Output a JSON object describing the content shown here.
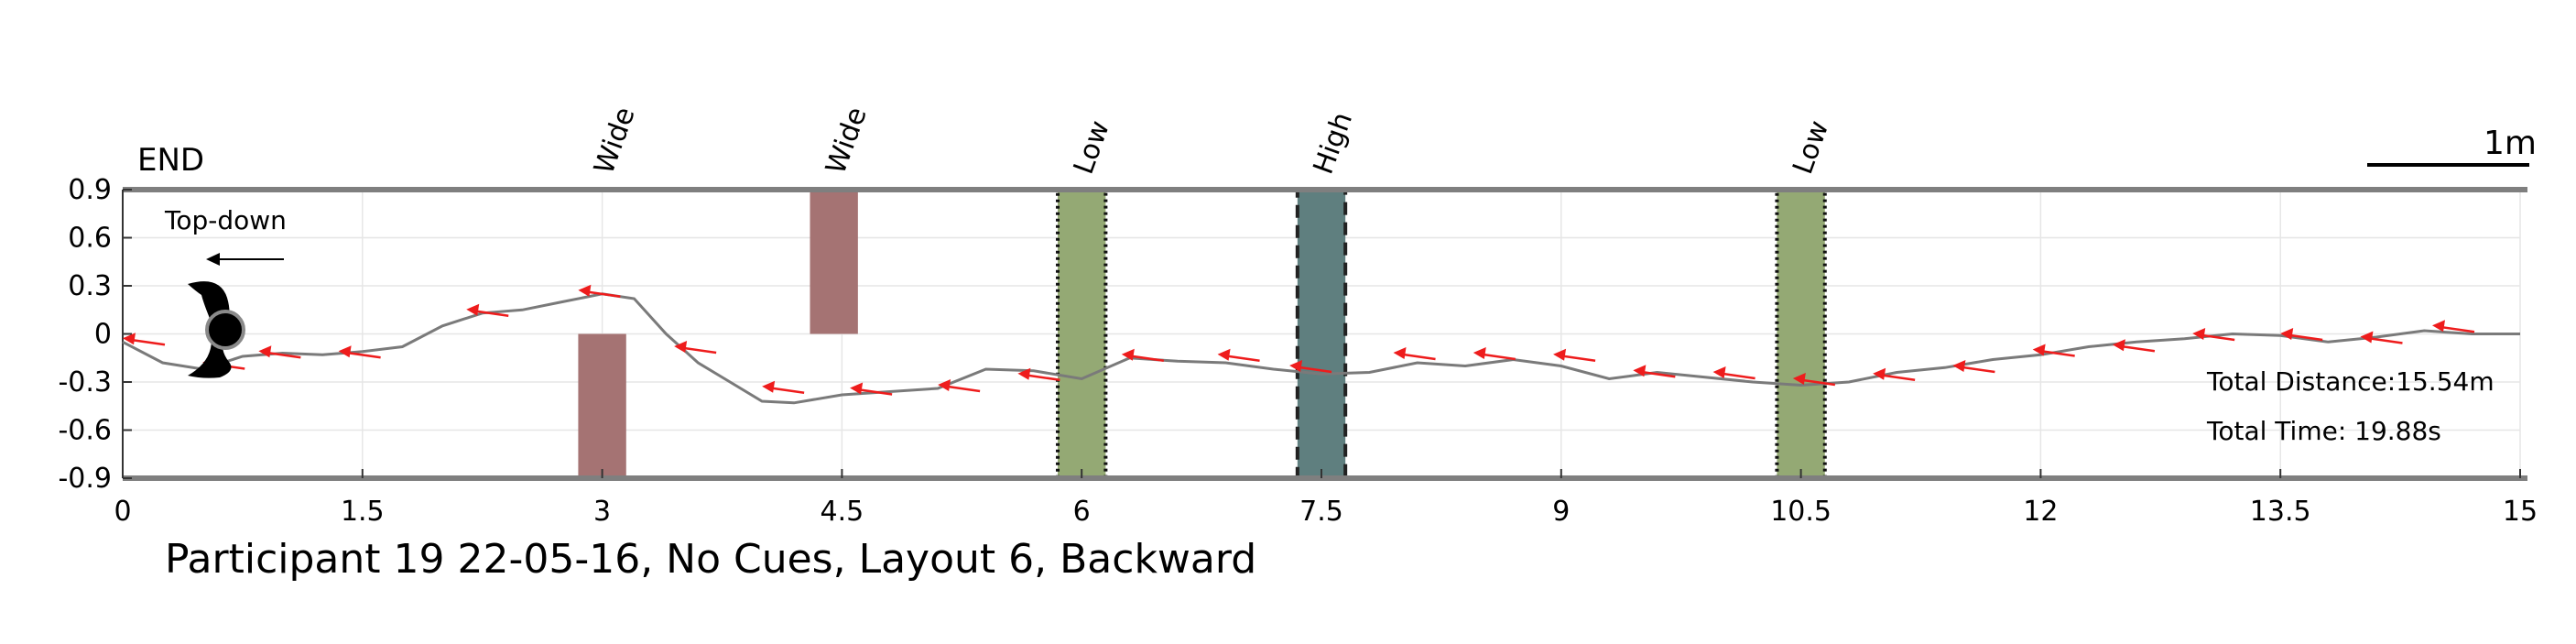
{
  "chart_data": {
    "type": "line",
    "title": "Participant 19 22-05-16, No Cues, Layout 6, Backward",
    "xlim": [
      0,
      15
    ],
    "ylim": [
      -0.9,
      0.9
    ],
    "x_ticks": [
      0,
      1.5,
      3,
      4.5,
      6,
      7.5,
      9,
      10.5,
      12,
      13.5,
      15
    ],
    "x_tick_labels": [
      "0",
      "1.5",
      "3",
      "4.5",
      "6",
      "7.5",
      "9",
      "10.5",
      "12",
      "13.5",
      "15"
    ],
    "y_ticks": [
      0.9,
      0.6,
      0.3,
      0,
      -0.3,
      -0.6,
      -0.9
    ],
    "y_tick_labels": [
      "0.9",
      "0.6",
      "0.3",
      "0",
      "-0.3",
      "-0.6",
      "-0.9"
    ],
    "grid": true,
    "end_label": "END",
    "orientation_label": "Top-down",
    "scale_label": "1m",
    "total_distance": "Total Distance:15.54m",
    "total_time": "Total Time: 19.88s",
    "obstacles": [
      {
        "label": "Wide",
        "x0": 2.85,
        "x1": 3.15,
        "y0": -0.9,
        "y1": 0.0,
        "color": "#a57373",
        "style": "solid"
      },
      {
        "label": "Wide",
        "x0": 4.3,
        "x1": 4.6,
        "y0": 0.0,
        "y1": 0.9,
        "color": "#a57373",
        "style": "solid"
      },
      {
        "label": "Low",
        "x0": 5.85,
        "x1": 6.15,
        "y0": -0.9,
        "y1": 0.9,
        "color": "#94a974",
        "style": "dotted"
      },
      {
        "label": "High",
        "x0": 7.35,
        "x1": 7.65,
        "y0": -0.9,
        "y1": 0.9,
        "color": "#5f7f7f",
        "style": "dashed"
      },
      {
        "label": "Low",
        "x0": 10.35,
        "x1": 10.65,
        "y0": -0.9,
        "y1": 0.9,
        "color": "#94a974",
        "style": "dotted"
      }
    ],
    "path": {
      "x": [
        0.0,
        0.25,
        0.5,
        0.75,
        1.0,
        1.25,
        1.5,
        1.75,
        2.0,
        2.25,
        2.5,
        2.75,
        3.0,
        3.2,
        3.4,
        3.6,
        3.8,
        4.0,
        4.2,
        4.5,
        4.8,
        5.1,
        5.4,
        5.7,
        6.0,
        6.3,
        6.6,
        6.9,
        7.2,
        7.5,
        7.8,
        8.1,
        8.4,
        8.7,
        9.0,
        9.3,
        9.6,
        9.9,
        10.2,
        10.5,
        10.8,
        11.1,
        11.4,
        11.7,
        12.0,
        12.3,
        12.6,
        12.9,
        13.2,
        13.5,
        13.8,
        14.1,
        14.4,
        14.7,
        15.0
      ],
      "y": [
        -0.05,
        -0.18,
        -0.22,
        -0.14,
        -0.12,
        -0.13,
        -0.11,
        -0.08,
        0.05,
        0.13,
        0.15,
        0.2,
        0.25,
        0.22,
        0.0,
        -0.18,
        -0.3,
        -0.42,
        -0.43,
        -0.38,
        -0.36,
        -0.34,
        -0.22,
        -0.23,
        -0.28,
        -0.15,
        -0.17,
        -0.18,
        -0.22,
        -0.25,
        -0.24,
        -0.18,
        -0.2,
        -0.16,
        -0.2,
        -0.28,
        -0.24,
        -0.27,
        -0.3,
        -0.32,
        -0.3,
        -0.24,
        -0.21,
        -0.16,
        -0.13,
        -0.08,
        -0.05,
        -0.03,
        0.0,
        -0.01,
        -0.05,
        -0.02,
        0.02,
        0.0,
        0.0
      ]
    },
    "direction_arrows": {
      "x": [
        0.0,
        0.5,
        0.85,
        1.35,
        2.15,
        2.85,
        3.45,
        4.0,
        4.55,
        5.1,
        5.6,
        6.25,
        6.85,
        7.3,
        7.95,
        8.45,
        8.95,
        9.45,
        9.95,
        10.45,
        10.95,
        11.45,
        11.95,
        12.45,
        12.95,
        13.5,
        14.0,
        14.45
      ],
      "y": [
        -0.05,
        -0.2,
        -0.13,
        -0.13,
        0.13,
        0.25,
        -0.1,
        -0.35,
        -0.36,
        -0.34,
        -0.27,
        -0.15,
        -0.15,
        -0.22,
        -0.14,
        -0.14,
        -0.15,
        -0.25,
        -0.26,
        -0.3,
        -0.27,
        -0.22,
        -0.12,
        -0.09,
        -0.02,
        -0.02,
        -0.04,
        0.03
      ]
    }
  }
}
